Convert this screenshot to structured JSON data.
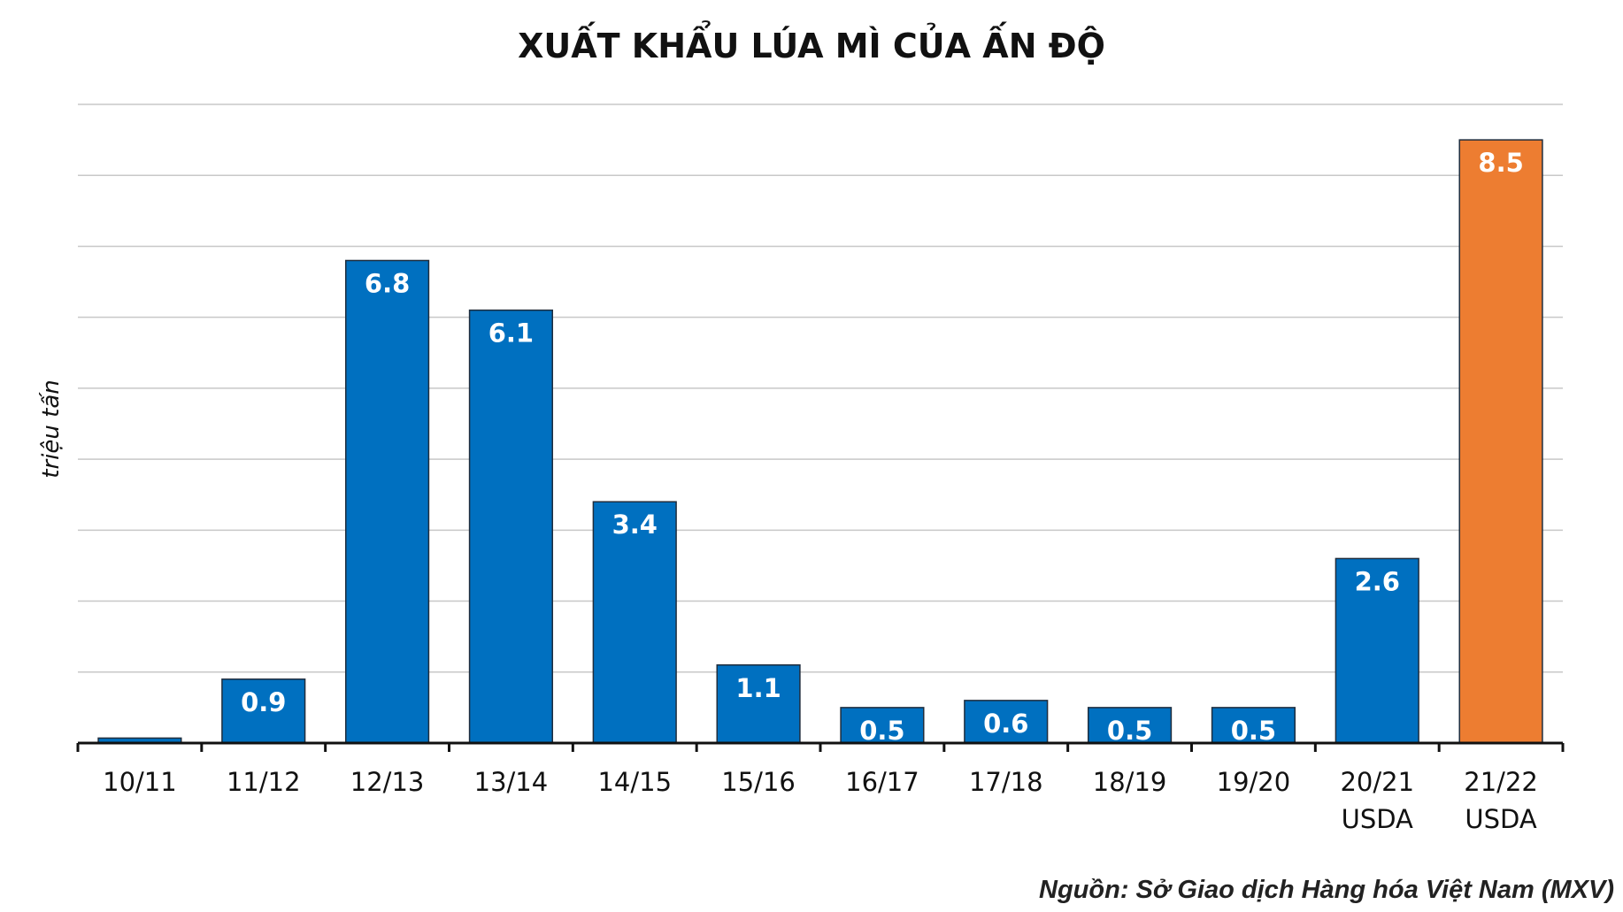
{
  "chart_data": {
    "type": "bar",
    "title": "XUẤT KHẨU LÚA MÌ CỦA ẤN ĐỘ",
    "xlabel": "",
    "ylabel": "triệu tấn",
    "ylim": [
      0,
      9
    ],
    "grid": true,
    "categories": [
      [
        "10/11"
      ],
      [
        "11/12"
      ],
      [
        "12/13"
      ],
      [
        "13/14"
      ],
      [
        "14/15"
      ],
      [
        "15/16"
      ],
      [
        "16/17"
      ],
      [
        "17/18"
      ],
      [
        "18/19"
      ],
      [
        "19/20"
      ],
      [
        "20/21",
        "USDA"
      ],
      [
        "21/22",
        "USDA"
      ]
    ],
    "values": [
      0.07,
      0.9,
      6.8,
      6.1,
      3.4,
      1.1,
      0.5,
      0.6,
      0.5,
      0.5,
      2.6,
      8.5
    ],
    "data_labels": [
      "",
      "0.9",
      "6.8",
      "6.1",
      "3.4",
      "1.1",
      "0.5",
      "0.6",
      "0.5",
      "0.5",
      "2.6",
      "8.5"
    ],
    "colors": [
      "#0070c0",
      "#0070c0",
      "#0070c0",
      "#0070c0",
      "#0070c0",
      "#0070c0",
      "#0070c0",
      "#0070c0",
      "#0070c0",
      "#0070c0",
      "#0070c0",
      "#ed7d31"
    ]
  },
  "source": "Nguồn: Sở Giao dịch Hàng hóa Việt Nam (MXV)"
}
